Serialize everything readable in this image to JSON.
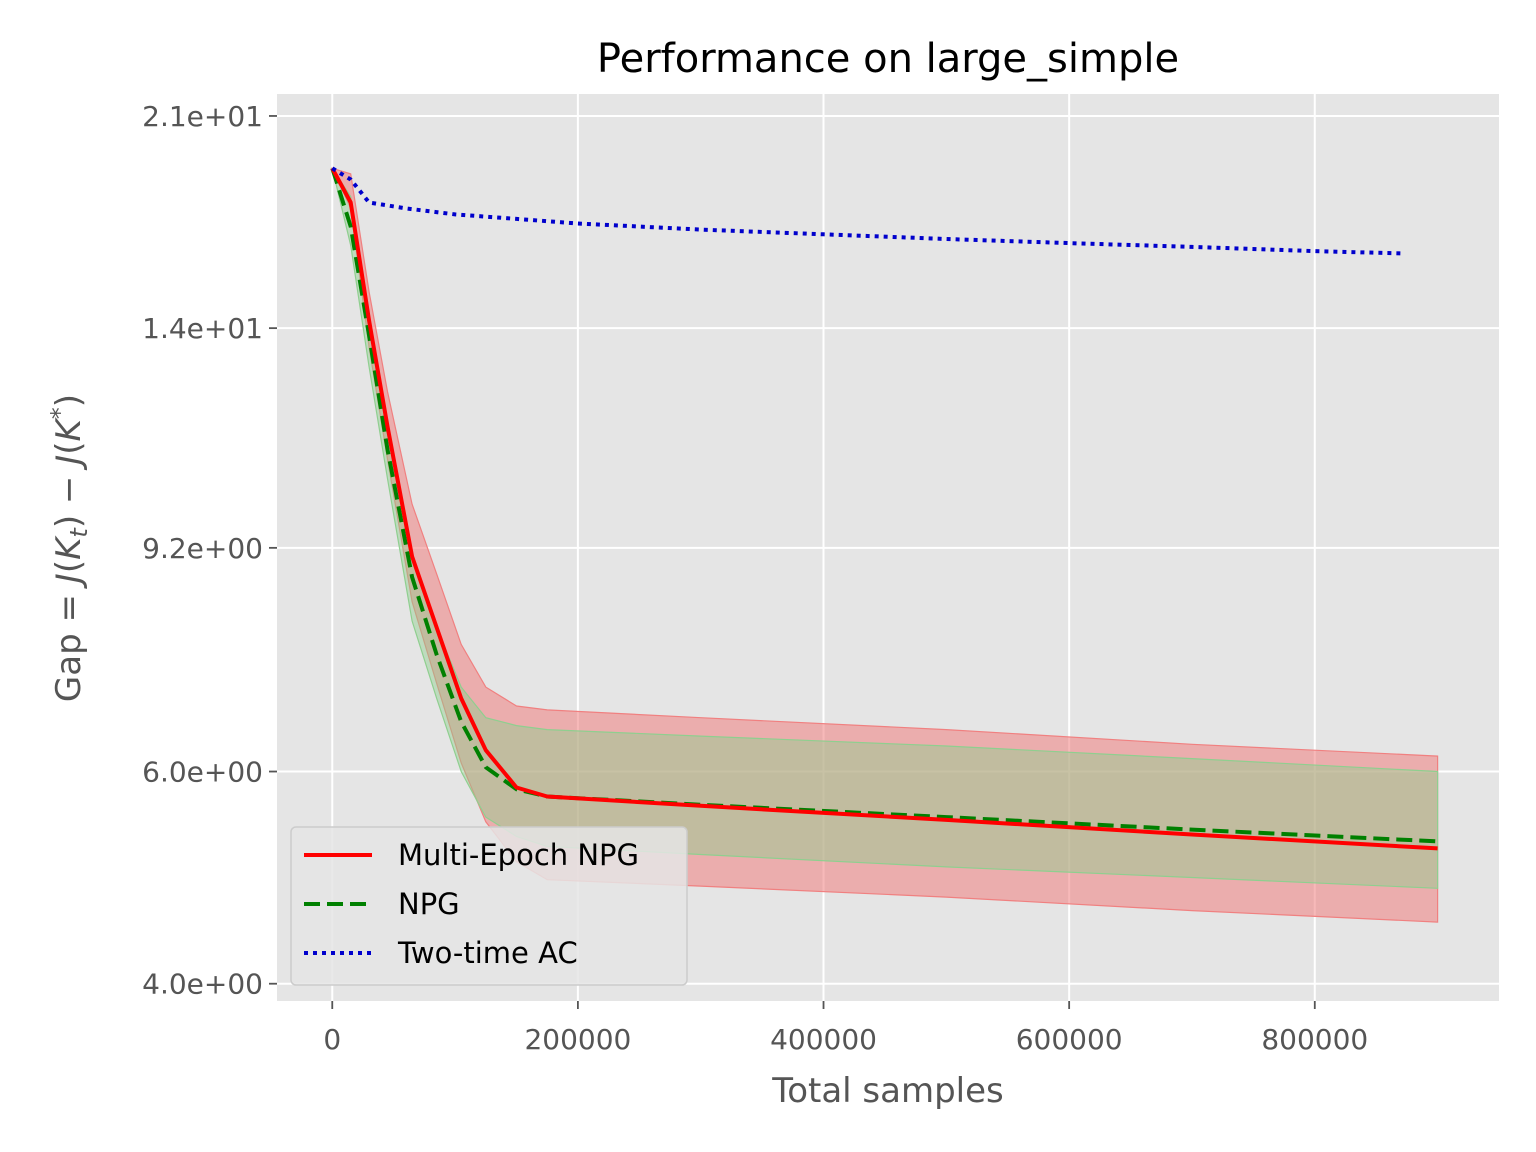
{
  "chart_data": {
    "type": "line",
    "title": "Performance on large_simple",
    "xlabel": "Total samples",
    "ylabel": {
      "prefix": "Gap = ",
      "italic_j1": "J",
      "k1": "K",
      "sub_t": "t",
      "minus": " − ",
      "italic_j2": "J",
      "k2": "K",
      "sup_star": "*"
    },
    "y_scale": "log",
    "xlim": [
      -45000,
      950000
    ],
    "ylim": [
      3.87,
      21.9
    ],
    "x_ticks": [
      {
        "value": 0,
        "label": "0"
      },
      {
        "value": 200000,
        "label": "200000"
      },
      {
        "value": 400000,
        "label": "400000"
      },
      {
        "value": 600000,
        "label": "600000"
      },
      {
        "value": 800000,
        "label": "800000"
      }
    ],
    "y_ticks": [
      {
        "value": 4.0,
        "label": "4.0e+00"
      },
      {
        "value": 6.0,
        "label": "6.0e+00"
      },
      {
        "value": 9.2,
        "label": "9.2e+00"
      },
      {
        "value": 14.0,
        "label": "1.4e+01"
      },
      {
        "value": 21.0,
        "label": "2.1e+01"
      }
    ],
    "grid": true,
    "legend_position": "lower-left",
    "series": [
      {
        "name": "Multi-Epoch NPG",
        "color": "#ff0000",
        "style": "solid",
        "band_color": "#f08080",
        "x": [
          0,
          15000,
          30000,
          45000,
          65000,
          85000,
          105000,
          125000,
          150000,
          175000,
          300000,
          500000,
          700000,
          900000
        ],
        "y": [
          19.0,
          17.8,
          14.2,
          11.6,
          9.05,
          7.9,
          6.9,
          6.25,
          5.82,
          5.72,
          5.62,
          5.47,
          5.32,
          5.18
        ],
        "lower": [
          19.0,
          17.6,
          13.5,
          10.9,
          8.3,
          7.1,
          6.1,
          5.45,
          5.05,
          4.88,
          4.82,
          4.72,
          4.6,
          4.5
        ],
        "upper": [
          19.0,
          18.8,
          15.0,
          12.4,
          10.0,
          8.75,
          7.65,
          7.05,
          6.8,
          6.75,
          6.65,
          6.5,
          6.32,
          6.18
        ]
      },
      {
        "name": "NPG",
        "color": "#008000",
        "style": "dashed",
        "band_color": "#8fcf8f",
        "x": [
          0,
          15000,
          30000,
          45000,
          65000,
          85000,
          105000,
          125000,
          150000,
          175000,
          300000,
          500000,
          700000,
          900000
        ],
        "y": [
          19.0,
          17.0,
          13.8,
          11.1,
          8.7,
          7.5,
          6.6,
          6.05,
          5.8,
          5.72,
          5.63,
          5.5,
          5.37,
          5.25
        ],
        "lower": [
          19.0,
          16.4,
          13.0,
          10.5,
          8.0,
          6.9,
          6.0,
          5.5,
          5.3,
          5.2,
          5.12,
          5.0,
          4.9,
          4.8
        ],
        "upper": [
          19.0,
          18.0,
          14.3,
          11.6,
          9.1,
          7.9,
          7.05,
          6.65,
          6.55,
          6.5,
          6.42,
          6.3,
          6.15,
          6.0
        ]
      },
      {
        "name": "Two-time AC",
        "color": "#0000cc",
        "style": "dotted",
        "x": [
          0,
          15000,
          30000,
          60000,
          100000,
          150000,
          200000,
          300000,
          400000,
          500000,
          600000,
          700000,
          800000,
          870000
        ],
        "y": [
          19.0,
          18.6,
          17.8,
          17.6,
          17.4,
          17.25,
          17.1,
          16.9,
          16.75,
          16.6,
          16.47,
          16.35,
          16.22,
          16.15
        ]
      }
    ]
  }
}
